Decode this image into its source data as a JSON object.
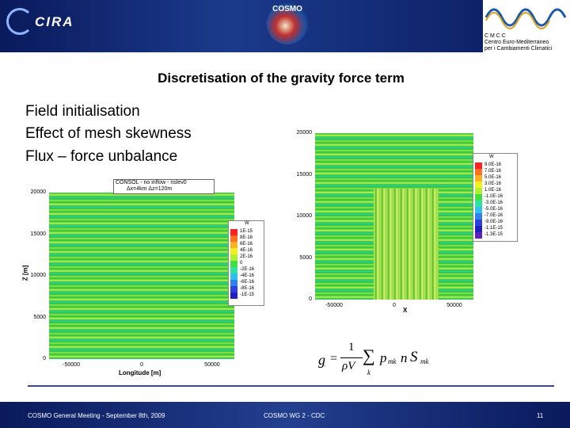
{
  "header": {
    "logo_left": "CIRA",
    "logo_center": "COSMO",
    "cmcc": [
      "C M C C",
      "Centro Euro-Mediterraneo",
      "per i Cambiamenti Climatici"
    ]
  },
  "title": "Discretisation of the gravity force term",
  "bullets": [
    "Field initialisation",
    "Effect of mesh skewness",
    "Flux – force unbalance"
  ],
  "plot_left": {
    "caption": [
      "CONSOL - no inflow - nslev0",
      "Δx=4km Δz=120m"
    ],
    "yticks": [
      "0",
      "5000",
      "10000",
      "15000",
      "20000"
    ],
    "xticks": [
      "-50000",
      "0",
      "50000"
    ],
    "xlabel": "Longitude [m]",
    "ylabel": "Z [m]",
    "legend_title": "W",
    "legend": [
      "1E-15",
      "8E-16",
      "6E-16",
      "4E-16",
      "2E-16",
      "0",
      "-2E-16",
      "-4E-16",
      "-6E-16",
      "-8E-16",
      "-1E-15"
    ]
  },
  "plot_right": {
    "yticks": [
      "0",
      "5000",
      "10000",
      "15000",
      "20000"
    ],
    "xticks": [
      "-50000",
      "0",
      "50000"
    ],
    "xlabel": "X",
    "legend_title": "W",
    "legend": [
      "9.0E-16",
      "7.0E-16",
      "5.0E-16",
      "3.0E-16",
      "1.0E-16",
      "-1.0E-16",
      "-3.0E-16",
      "-5.0E-16",
      "-7.0E-16",
      "-9.0E-16",
      "-1.1E-15",
      "-1.3E-15"
    ]
  },
  "formula": {
    "lhs": "g",
    "eq": "=",
    "num": "1",
    "den": "ρV",
    "sum": "∑",
    "index": "k",
    "term": "p",
    "term_sub": "mk",
    "n": "n",
    "s": "S",
    "s_sub": "mk"
  },
  "footer": {
    "left": "COSMO General Meeting - September 8th, 2009",
    "center": "COSMO WG 2 - CDC",
    "page": "11"
  }
}
